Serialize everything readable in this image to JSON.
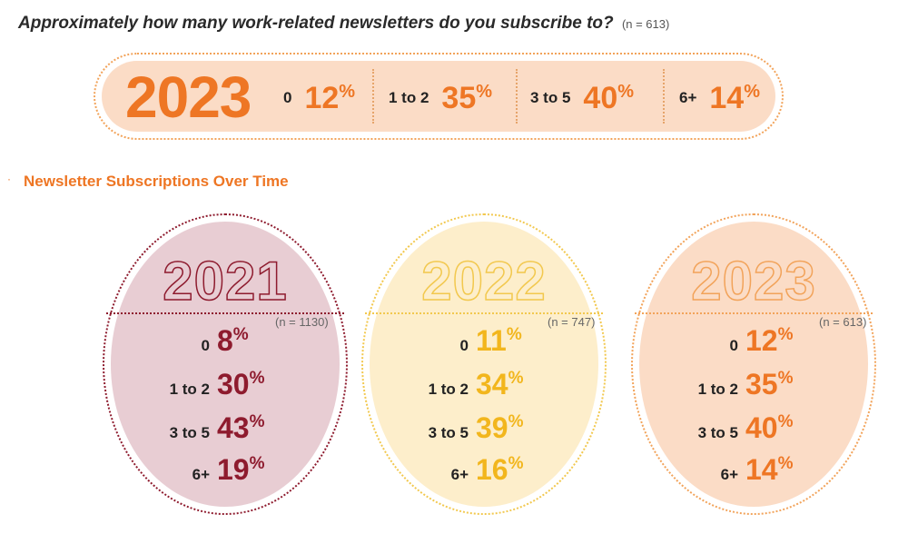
{
  "question": {
    "text": "Approximately how many work-related newsletters do you subscribe to?",
    "n": "(n = 613)"
  },
  "summary": {
    "year": "2023",
    "items": [
      {
        "label": "0",
        "value": "12",
        "unit": "%"
      },
      {
        "label": "1 to 2",
        "value": "35",
        "unit": "%"
      },
      {
        "label": "3 to 5",
        "value": "40",
        "unit": "%"
      },
      {
        "label": "6+",
        "value": "14",
        "unit": "%"
      }
    ]
  },
  "section_title": "Newsletter Subscriptions Over Time",
  "colors": {
    "orange": "#ee7624",
    "maroon": "#8e1b2e",
    "gold": "#f2b61d"
  },
  "chart_data": {
    "type": "table",
    "title": "Newsletter Subscriptions Over Time",
    "categories": [
      "0",
      "1 to 2",
      "3 to 5",
      "6+"
    ],
    "unit": "%",
    "series": [
      {
        "name": "2021",
        "n": "(n = 1130)",
        "values": [
          8,
          30,
          43,
          19
        ]
      },
      {
        "name": "2022",
        "n": "(n = 747)",
        "values": [
          11,
          34,
          39,
          16
        ]
      },
      {
        "name": "2023",
        "n": "(n = 613)",
        "values": [
          12,
          35,
          40,
          14
        ]
      }
    ]
  }
}
